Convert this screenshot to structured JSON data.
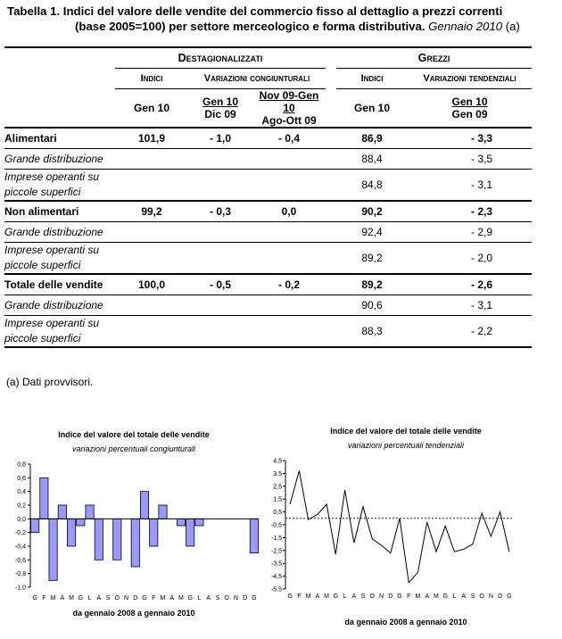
{
  "title": {
    "line1": "Tabella 1. Indici del valore delle vendite del commercio fisso al dettaglio a prezzi correnti",
    "line2": "(base 2005=100) per settore merceologico e forma distributiva.",
    "period": "Gennaio 2010",
    "note_ref": "(a)"
  },
  "table": {
    "group_dest": "Destagionalizzati",
    "group_grezzi": "Grezzi",
    "sub_indici_dest": "Indici",
    "sub_var_cong": "Variazioni congiunturali",
    "sub_indici_grezzi": "Indici",
    "sub_var_tend": "Variazioni tendenziali",
    "col1": "Gen 10",
    "col2a": "Gen 10",
    "col2b": "Dic 09",
    "col3a": "Nov 09-Gen 10",
    "col3b": "Ago-Ott 09",
    "col4": "Gen 10",
    "col5a": "Gen 10",
    "col5b": "Gen 09",
    "rows": [
      {
        "label": "Alimentari",
        "d_idx": "101,9",
        "d_cong": "- 1,0",
        "d_trim": "- 0,4",
        "g_idx": "86,9",
        "g_tend": "- 3,3"
      },
      {
        "label": "Grande distribuzione",
        "d_idx": "",
        "d_cong": "",
        "d_trim": "",
        "g_idx": "88,4",
        "g_tend": "- 3,5"
      },
      {
        "label1": "Imprese operanti su",
        "label2": "piccole superfici",
        "d_idx": "",
        "d_cong": "",
        "d_trim": "",
        "g_idx": "84,8",
        "g_tend": "- 3,1"
      },
      {
        "label": "Non alimentari",
        "d_idx": "99,2",
        "d_cong": "- 0,3",
        "d_trim": "0,0",
        "g_idx": "90,2",
        "g_tend": "- 2,3"
      },
      {
        "label": "Grande distribuzione",
        "d_idx": "",
        "d_cong": "",
        "d_trim": "",
        "g_idx": "92,4",
        "g_tend": "- 2,9"
      },
      {
        "label1": "Imprese operanti su",
        "label2": "piccole superfici",
        "d_idx": "",
        "d_cong": "",
        "d_trim": "",
        "g_idx": "89,2",
        "g_tend": "- 2,0"
      },
      {
        "label": "Totale delle vendite",
        "d_idx": "100,0",
        "d_cong": "- 0,5",
        "d_trim": "- 0,2",
        "g_idx": "89,2",
        "g_tend": "- 2,6"
      },
      {
        "label": "Grande distribuzione",
        "d_idx": "",
        "d_cong": "",
        "d_trim": "",
        "g_idx": "90,6",
        "g_tend": "- 3,1"
      },
      {
        "label1": "Imprese operanti su",
        "label2": "piccole superfici",
        "d_idx": "",
        "d_cong": "",
        "d_trim": "",
        "g_idx": "88,3",
        "g_tend": "- 2,2"
      }
    ]
  },
  "note": "(a) Dati provvisori.",
  "chart_data": [
    {
      "type": "bar",
      "title": "Indice del valore del totale delle vendite",
      "subtitle": "variazioni percentuali congiunturali",
      "xlabel": "da gennaio 2008 a gennaio 2010",
      "categories": [
        "G",
        "F",
        "M",
        "A",
        "M",
        "G",
        "L",
        "A",
        "S",
        "O",
        "N",
        "D",
        "G",
        "F",
        "M",
        "A",
        "M",
        "G",
        "L",
        "A",
        "S",
        "O",
        "N",
        "D",
        "G"
      ],
      "values": [
        -0.2,
        0.6,
        -0.9,
        0.2,
        -0.4,
        -0.1,
        0.2,
        -0.6,
        0.0,
        -0.6,
        0.0,
        -0.7,
        0.4,
        -0.4,
        0.2,
        0.0,
        -0.1,
        -0.4,
        -0.1,
        0.0,
        0.0,
        0.0,
        0.0,
        0.0,
        -0.5
      ],
      "ylim": [
        -1.0,
        0.8
      ],
      "yticks": [
        "0,8",
        "0,6",
        "0,4",
        "0,2",
        "0,0",
        "-0,2",
        "-0,4",
        "-0,6",
        "-0,8",
        "-1,0"
      ],
      "bar_color": "#9999ff"
    },
    {
      "type": "line",
      "title": "Indice del valore del totale delle vendite",
      "subtitle": "variazioni percentuali tendenziali",
      "xlabel": "da gennaio 2008 a gennaio 2010",
      "categories": [
        "G",
        "F",
        "M",
        "A",
        "M",
        "G",
        "L",
        "A",
        "S",
        "O",
        "N",
        "D",
        "G",
        "F",
        "M",
        "A",
        "M",
        "G",
        "L",
        "A",
        "S",
        "O",
        "N",
        "D",
        "G"
      ],
      "values": [
        1.1,
        3.7,
        -0.1,
        0.3,
        1.1,
        -2.8,
        2.2,
        -1.9,
        0.9,
        -1.6,
        -2.1,
        -2.7,
        0.0,
        -5.0,
        -4.2,
        -0.3,
        -2.6,
        -0.6,
        -2.6,
        -2.4,
        -2.0,
        0.4,
        -1.4,
        0.5,
        -2.6
      ],
      "ylim": [
        -5.5,
        4.5
      ],
      "yticks": [
        "4,5",
        "3,5",
        "2,5",
        "1,5",
        "0,5",
        "-0,5",
        "-1,5",
        "-2,5",
        "-3,5",
        "-4,5",
        "-5,5"
      ]
    }
  ]
}
